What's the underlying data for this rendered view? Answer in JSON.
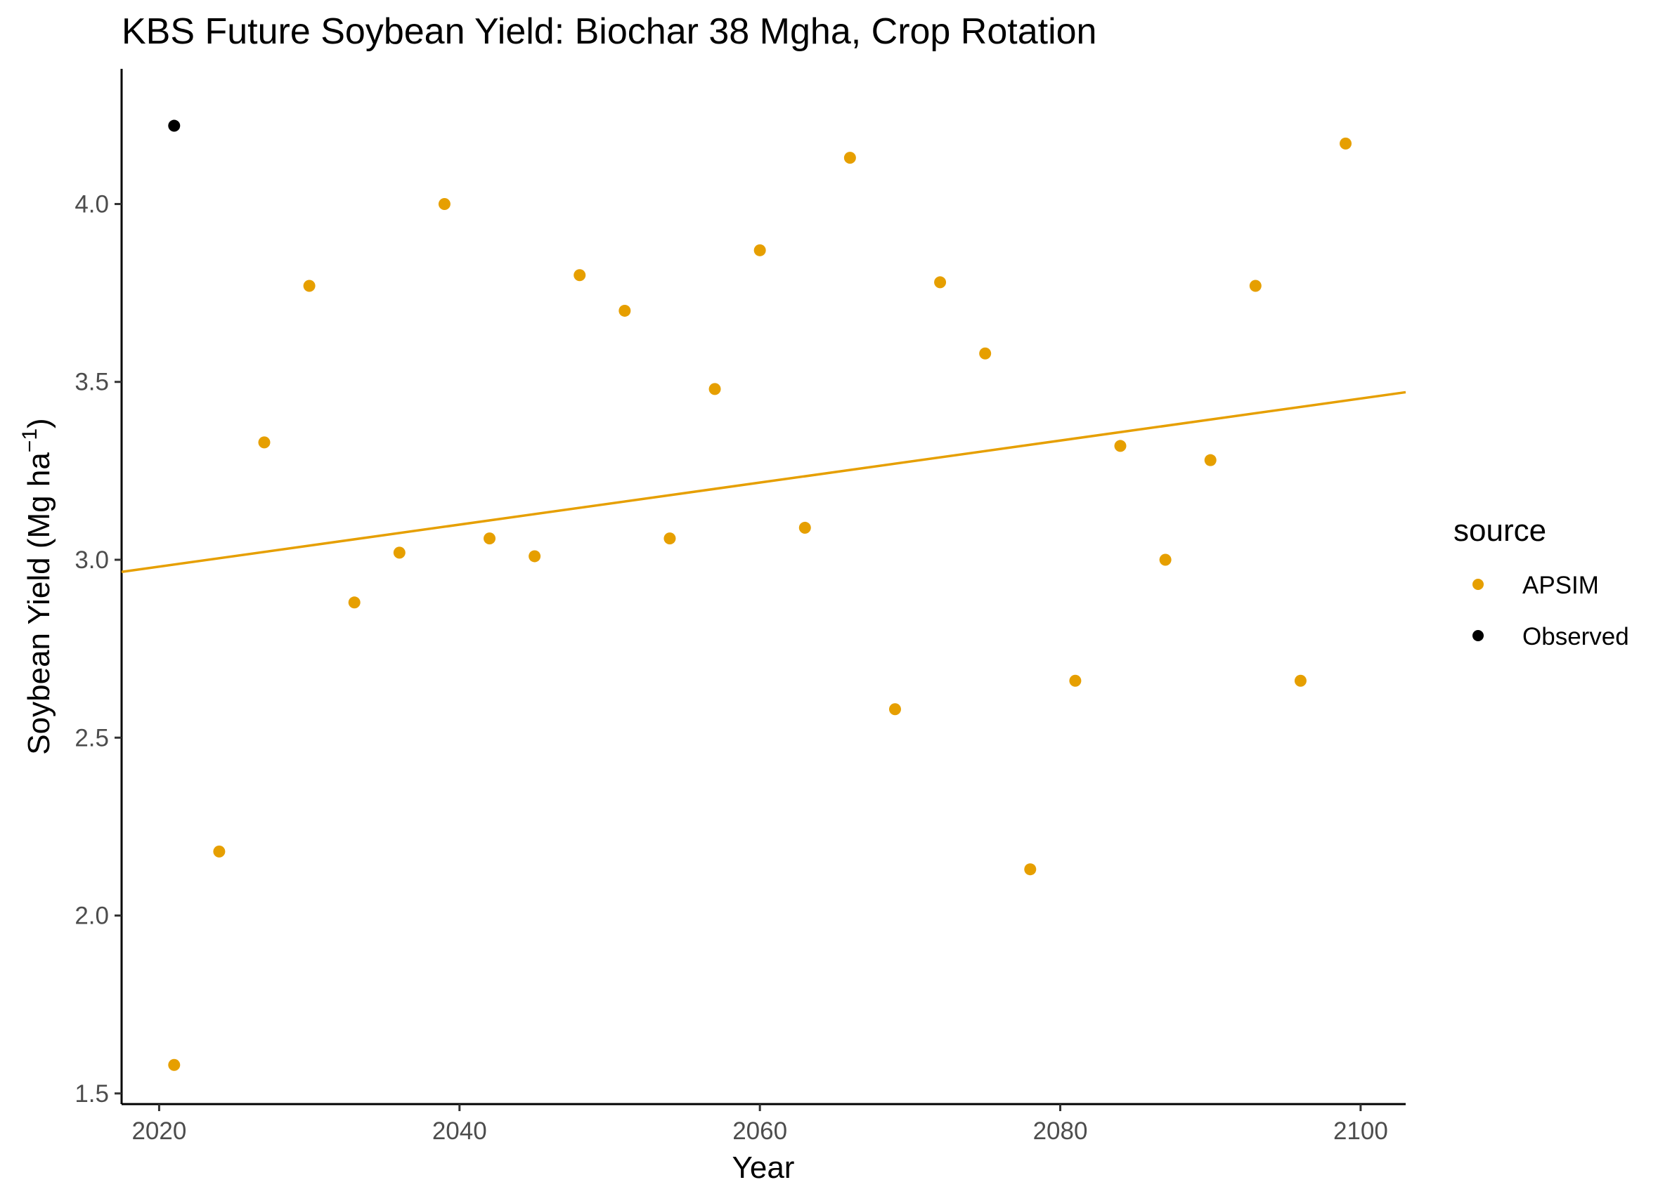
{
  "chart_data": {
    "type": "scatter",
    "title": "KBS Future Soybean Yield:  Biochar 38 Mgha, Crop Rotation",
    "xlabel": "Year",
    "ylabel": {
      "main": "Soybean Yield (Mg ha",
      "superscript": "−1",
      "close": ")"
    },
    "xlim": [
      2017.5,
      2103
    ],
    "ylim": [
      1.47,
      4.38
    ],
    "x_ticks": [
      2020,
      2040,
      2060,
      2080,
      2100
    ],
    "x_tick_labels": [
      "2020",
      "2040",
      "2060",
      "2080",
      "2100"
    ],
    "y_ticks": [
      1.5,
      2.0,
      2.5,
      3.0,
      3.5,
      4.0
    ],
    "y_tick_labels": [
      "1.5",
      "2.0",
      "2.5",
      "3.0",
      "3.5",
      "4.0"
    ],
    "grid": false,
    "legend": {
      "title": "source",
      "placement": "right",
      "entries": [
        {
          "label": "APSIM",
          "color": "#E69F00"
        },
        {
          "label": "Observed",
          "color": "#000000"
        }
      ]
    },
    "series": [
      {
        "name": "APSIM",
        "color": "#E69F00",
        "x": [
          2021,
          2024,
          2027,
          2030,
          2033,
          2036,
          2039,
          2042,
          2045,
          2048,
          2051,
          2054,
          2057,
          2060,
          2063,
          2066,
          2069,
          2072,
          2075,
          2078,
          2081,
          2084,
          2087,
          2090,
          2093,
          2096,
          2099
        ],
        "y": [
          1.58,
          2.18,
          3.33,
          3.77,
          2.88,
          3.02,
          4.0,
          3.06,
          3.01,
          3.8,
          3.7,
          3.06,
          3.48,
          3.87,
          3.09,
          4.13,
          2.58,
          3.78,
          3.58,
          2.13,
          2.66,
          3.32,
          3.0,
          3.28,
          3.77,
          2.66,
          4.17
        ]
      },
      {
        "name": "Observed",
        "color": "#000000",
        "x": [
          2021
        ],
        "y": [
          4.22
        ]
      }
    ],
    "trend_line": {
      "series": "APSIM",
      "color": "#E69F00",
      "x": [
        2017.5,
        2103
      ],
      "y": [
        2.966,
        3.471
      ]
    }
  }
}
